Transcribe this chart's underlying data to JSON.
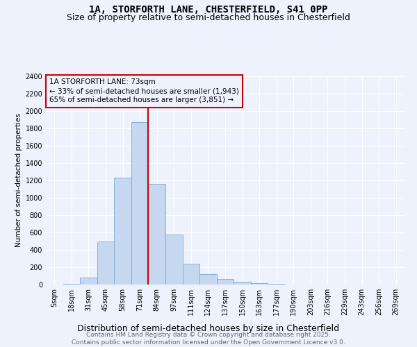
{
  "title": "1A, STORFORTH LANE, CHESTERFIELD, S41 0PP",
  "subtitle": "Size of property relative to semi-detached houses in Chesterfield",
  "xlabel": "Distribution of semi-detached houses by size in Chesterfield",
  "ylabel": "Number of semi-detached properties",
  "categories": [
    "5sqm",
    "18sqm",
    "31sqm",
    "45sqm",
    "58sqm",
    "71sqm",
    "84sqm",
    "97sqm",
    "111sqm",
    "124sqm",
    "137sqm",
    "150sqm",
    "163sqm",
    "177sqm",
    "190sqm",
    "203sqm",
    "216sqm",
    "229sqm",
    "243sqm",
    "256sqm",
    "269sqm"
  ],
  "values": [
    3,
    5,
    80,
    500,
    1230,
    1870,
    1160,
    580,
    240,
    120,
    65,
    35,
    15,
    5,
    2,
    1,
    0,
    0,
    0,
    0,
    0
  ],
  "bar_color": "#c5d8f0",
  "bar_edge_color": "#7aaad0",
  "vline_x_idx": 6,
  "vline_color": "#cc0000",
  "annotation_title": "1A STORFORTH LANE: 73sqm",
  "annotation_line1": "← 33% of semi-detached houses are smaller (1,943)",
  "annotation_line2": "65% of semi-detached houses are larger (3,851) →",
  "annotation_box_color": "#cc0000",
  "ylim": [
    0,
    2400
  ],
  "yticks": [
    0,
    200,
    400,
    600,
    800,
    1000,
    1200,
    1400,
    1600,
    1800,
    2000,
    2200,
    2400
  ],
  "footer": "Contains HM Land Registry data © Crown copyright and database right 2025.\nContains public sector information licensed under the Open Government Licence v3.0.",
  "bg_color": "#eef2fc",
  "grid_color": "#ffffff",
  "title_fontsize": 10,
  "subtitle_fontsize": 9,
  "xlabel_fontsize": 9,
  "ylabel_fontsize": 7.5,
  "tick_fontsize": 7,
  "annotation_fontsize": 7.5,
  "footer_fontsize": 6.5
}
